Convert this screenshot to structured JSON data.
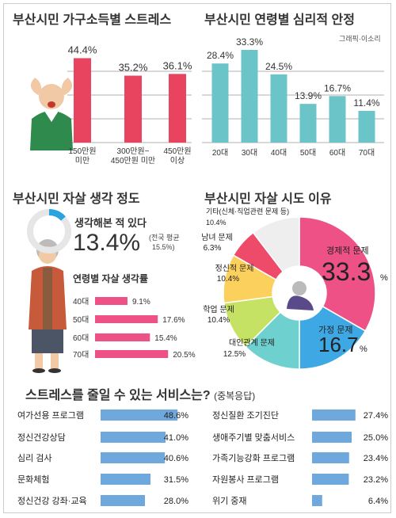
{
  "colors": {
    "red": "#e8445f",
    "teal": "#6bc4c8",
    "pink": "#ee5186",
    "blue": "#6fa8dc",
    "grid": "#666666",
    "text": "#333333"
  },
  "chart_data": [
    {
      "type": "bar",
      "title": "부산시민 가구소득별 스트레스",
      "categories": [
        "150만원 미만",
        "300만원~ 450만원 미만",
        "450만원 이상"
      ],
      "values": [
        44.4,
        35.2,
        36.1
      ],
      "value_labels": [
        "44.4%",
        "35.2%",
        "36.1%"
      ],
      "ylim": [
        0,
        50
      ]
    },
    {
      "type": "bar",
      "title": "부산시민 연령별 심리적 안정",
      "credit": "그래픽·이소리",
      "categories": [
        "20대",
        "30대",
        "40대",
        "50대",
        "60대",
        "70대"
      ],
      "values": [
        28.4,
        33.3,
        24.5,
        13.9,
        16.7,
        11.4
      ],
      "value_labels": [
        "28.4%",
        "33.3%",
        "24.5%",
        "13.9%",
        "16.7%",
        "11.4%"
      ],
      "ylim": [
        0,
        35
      ]
    },
    {
      "type": "bar",
      "orientation": "horizontal",
      "title": "부산시민 자살 생각 정도",
      "headline_label": "생각해본 적 있다",
      "headline_value": "13.4%",
      "headline_fraction": 0.134,
      "note_line1": "(전국 평균",
      "note_line2": "15.5%)",
      "subtitle": "연령별 자살 생각률",
      "categories": [
        "40대",
        "50대",
        "60대",
        "70대"
      ],
      "values": [
        9.1,
        17.6,
        15.4,
        20.5
      ],
      "value_labels": [
        "9.1%",
        "17.6%",
        "15.4%",
        "20.5%"
      ]
    },
    {
      "type": "pie",
      "title": "부산시민 자살 시도 이유",
      "slices": [
        {
          "label": "경제적 문제",
          "value": 33.3,
          "display": "33.3",
          "unit": "%",
          "color": "#ee5186"
        },
        {
          "label": "가정 문제",
          "value": 16.7,
          "display": "16.7",
          "unit": "%",
          "color": "#3ea8e4"
        },
        {
          "label": "대인관계 문제",
          "value": 12.5,
          "display": "12.5%",
          "color": "#6ed0cf"
        },
        {
          "label": "학업 문제",
          "value": 10.4,
          "display": "10.4%",
          "color": "#c6e264"
        },
        {
          "label": "정신적 문제",
          "value": 10.4,
          "display": "10.4%",
          "color": "#fcd05c"
        },
        {
          "label": "남녀 문제",
          "value": 6.3,
          "display": "6.3%",
          "color": "#ee4b6a"
        },
        {
          "label": "기타(신체·직업관련 문제 등)",
          "value": 10.4,
          "display": "10.4%",
          "color": "#eeeeee"
        }
      ]
    },
    {
      "type": "bar",
      "orientation": "horizontal",
      "title": "스트레스를 줄일 수 있는 서비스는?",
      "title_note": "(중복응답)",
      "left": {
        "categories": [
          "여가선용 프로그램",
          "정신건강상담",
          "심리 검사",
          "문화체험",
          "정신건강 강좌·교육"
        ],
        "values": [
          48.6,
          41.0,
          40.6,
          31.5,
          28.0
        ],
        "value_labels": [
          "48.6%",
          "41.0%",
          "40.6%",
          "31.5%",
          "28.0%"
        ]
      },
      "right": {
        "categories": [
          "정신질환 조기진단",
          "생애주기별 맞춤서비스",
          "가족기능강화 프로그램",
          "자원봉사 프로그램",
          "위기 중재"
        ],
        "values": [
          27.4,
          25.0,
          23.4,
          23.2,
          6.4
        ],
        "value_labels": [
          "27.4%",
          "25.0%",
          "23.4%",
          "23.2%",
          "6.4%"
        ]
      }
    }
  ]
}
